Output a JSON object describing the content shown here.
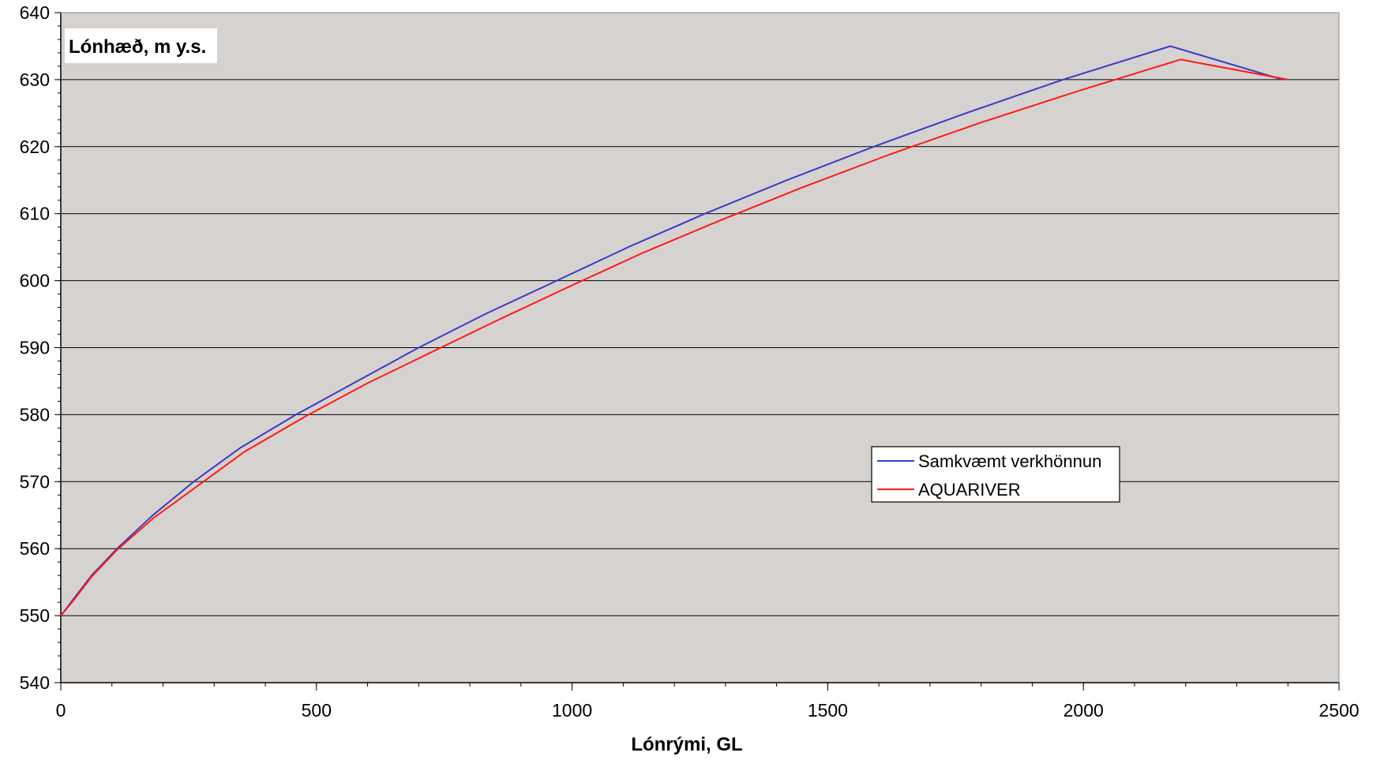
{
  "chart_data": {
    "type": "line",
    "ylabel": "Lónhæð, m y.s.",
    "xlabel": "Lónrými, GL",
    "xlim": [
      0,
      2500
    ],
    "ylim": [
      540,
      640
    ],
    "xticks": [
      0,
      500,
      1000,
      1500,
      2000,
      2500
    ],
    "yticks": [
      540,
      550,
      560,
      570,
      580,
      590,
      600,
      610,
      620,
      630,
      640
    ],
    "grid": "horizontal",
    "legend_position": "right-middle",
    "colors": {
      "plot_background": "#d6d2d0",
      "gridline": "#000000"
    },
    "series": [
      {
        "name": "Samkvæmt verkhönnun",
        "color": "#3b3bc4",
        "x": [
          0,
          25,
          60,
          110,
          180,
          260,
          350,
          460,
          580,
          700,
          830,
          970,
          1110,
          1260,
          1420,
          1590,
          1770,
          1960,
          2170,
          2390
        ],
        "y": [
          550,
          552.5,
          556,
          560,
          565,
          570,
          575,
          580,
          585,
          590,
          595,
          600,
          605,
          610,
          615,
          620,
          625,
          630,
          635,
          630
        ]
      },
      {
        "name": "AQUARIVER",
        "color": "#ff1a1a",
        "x": [
          0,
          25,
          60,
          110,
          180,
          270,
          360,
          480,
          600,
          730,
          860,
          1000,
          1140,
          1290,
          1450,
          1620,
          1800,
          1990,
          2190,
          2400
        ],
        "y": [
          550,
          552.3,
          555.8,
          559.8,
          564.5,
          569.5,
          574.5,
          579.8,
          584.7,
          589.5,
          594.3,
          599.3,
          604.2,
          609,
          613.9,
          618.8,
          623.6,
          628.3,
          633,
          630
        ]
      }
    ]
  }
}
